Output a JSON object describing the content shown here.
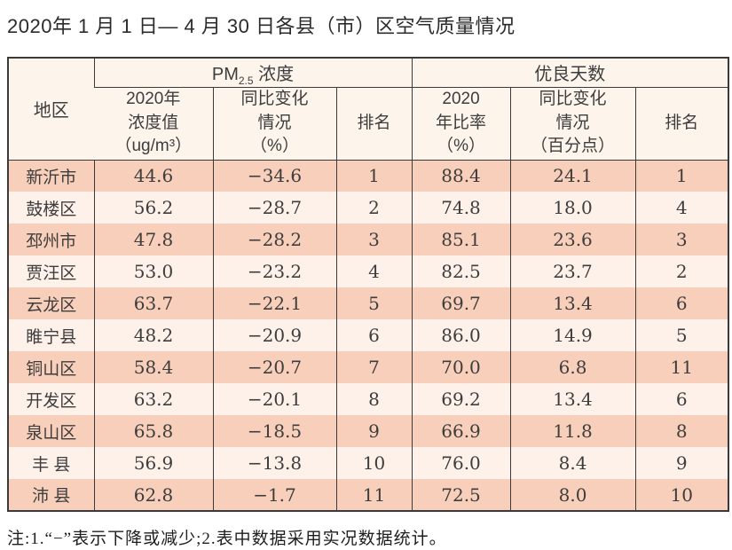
{
  "page": {
    "title": "2020年 1 月 1 日— 4 月 30 日各县（市）区空气质量情况",
    "footnote": "注:1.“−”表示下降或减少;2.表中数据采用实况数据统计。"
  },
  "table": {
    "region_header": "地区",
    "groups": [
      {
        "prefix": "PM",
        "sub": "2.5",
        "suffix": " 浓度"
      },
      {
        "label": "优良天数"
      }
    ],
    "sub_headers": {
      "pm_value": "2020年\n浓度值\n（ug/m³）",
      "pm_change": "同比变化\n情况\n（%）",
      "pm_rank": "排名",
      "good_ratio": "2020\n年比率\n（%）",
      "good_change": "同比变化\n情况\n（百分点）",
      "good_rank": "排名"
    },
    "rows": [
      {
        "region": "新沂市",
        "pm_value": "44.6",
        "pm_change": "−34.6",
        "pm_rank": "1",
        "good_ratio": "88.4",
        "good_change": "24.1",
        "good_rank": "1"
      },
      {
        "region": "鼓楼区",
        "pm_value": "56.2",
        "pm_change": "−28.7",
        "pm_rank": "2",
        "good_ratio": "74.8",
        "good_change": "18.0",
        "good_rank": "4"
      },
      {
        "region": "邳州市",
        "pm_value": "47.8",
        "pm_change": "−28.2",
        "pm_rank": "3",
        "good_ratio": "85.1",
        "good_change": "23.6",
        "good_rank": "3"
      },
      {
        "region": "贾汪区",
        "pm_value": "53.0",
        "pm_change": "−23.2",
        "pm_rank": "4",
        "good_ratio": "82.5",
        "good_change": "23.7",
        "good_rank": "2"
      },
      {
        "region": "云龙区",
        "pm_value": "63.7",
        "pm_change": "−22.1",
        "pm_rank": "5",
        "good_ratio": "69.7",
        "good_change": "13.4",
        "good_rank": "6"
      },
      {
        "region": "睢宁县",
        "pm_value": "48.2",
        "pm_change": "−20.9",
        "pm_rank": "6",
        "good_ratio": "86.0",
        "good_change": "14.9",
        "good_rank": "5"
      },
      {
        "region": "铜山区",
        "pm_value": "58.4",
        "pm_change": "−20.7",
        "pm_rank": "7",
        "good_ratio": "70.0",
        "good_change": "6.8",
        "good_rank": "11"
      },
      {
        "region": "开发区",
        "pm_value": "63.2",
        "pm_change": "−20.1",
        "pm_rank": "8",
        "good_ratio": "69.2",
        "good_change": "13.4",
        "good_rank": "6"
      },
      {
        "region": "泉山区",
        "pm_value": "65.8",
        "pm_change": "−18.5",
        "pm_rank": "9",
        "good_ratio": "66.9",
        "good_change": "11.8",
        "good_rank": "8"
      },
      {
        "region": "丰 县",
        "pm_value": "56.9",
        "pm_change": "−13.8",
        "pm_rank": "10",
        "good_ratio": "76.0",
        "good_change": "8.4",
        "good_rank": "9"
      },
      {
        "region": "沛 县",
        "pm_value": "62.8",
        "pm_change": "−1.7",
        "pm_rank": "11",
        "good_ratio": "72.5",
        "good_change": "8.0",
        "good_rank": "10"
      }
    ]
  },
  "colors": {
    "row_odd": "#f8cfba",
    "row_even": "#fdf1ea",
    "header_bg": "#fdf4ec",
    "border": "#3a3a3a",
    "text": "#3d3d3d",
    "title_text": "#2b2b2b"
  }
}
